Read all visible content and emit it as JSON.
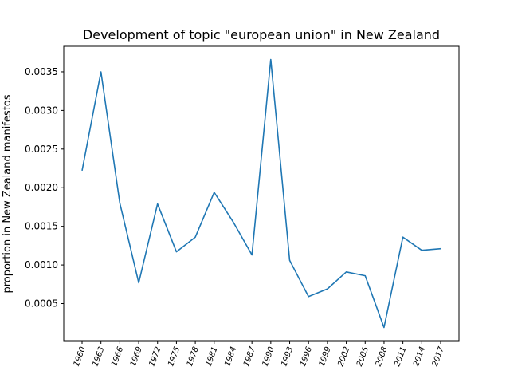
{
  "chart_data": {
    "type": "line",
    "title": "Development of topic \"european union\" in New Zealand",
    "xlabel": "",
    "ylabel": "proportion in New Zealand manifestos",
    "categories": [
      "1960",
      "1963",
      "1966",
      "1969",
      "1972",
      "1975",
      "1978",
      "1981",
      "1984",
      "1987",
      "1990",
      "1993",
      "1996",
      "1999",
      "2002",
      "2005",
      "2008",
      "2011",
      "2014",
      "2017"
    ],
    "series": [
      {
        "name": "",
        "color": "#1f77b4",
        "values": [
          0.00222,
          0.0035,
          0.0018,
          0.00077,
          0.00179,
          0.00117,
          0.00136,
          0.00194,
          0.00156,
          0.00113,
          0.00366,
          0.00106,
          0.00059,
          0.00069,
          0.00091,
          0.00086,
          0.00019,
          0.00136,
          0.00119,
          0.00121
        ]
      }
    ],
    "yticks": [
      "0.0005",
      "0.0010",
      "0.0015",
      "0.0020",
      "0.0025",
      "0.0030",
      "0.0035"
    ],
    "ylim": [
      2e-05,
      0.00383
    ],
    "grid": false,
    "legend": "none"
  }
}
